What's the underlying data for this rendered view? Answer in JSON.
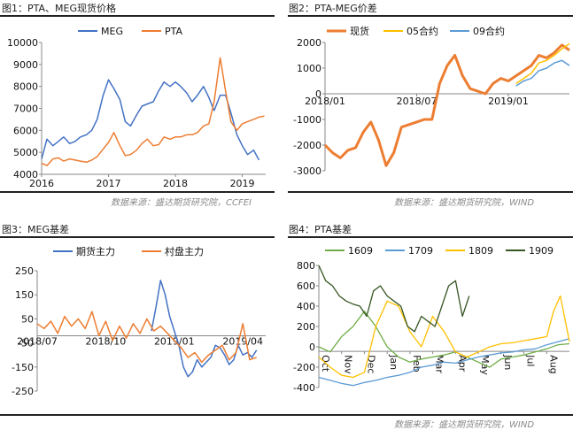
{
  "captions": {
    "c1_title": "图1：PTA、MEG现货价格",
    "c2_title": "图2：PTA-MEG价差",
    "c3_title": "图3：MEG基差",
    "c4_title": "图4：PTA基差",
    "source_left_top": "数据来源：盛达期货研究院，CCFEI",
    "source_right_top": "数据来源：盛达期货研究院，WIND",
    "source_bottom": "数据来源：盛达期货研究院，WIND"
  },
  "chart_data": [
    {
      "type": "line",
      "xlim": [
        2016.0,
        2019.35
      ],
      "ylim": [
        4000,
        10000
      ],
      "yticks": [
        4000,
        5000,
        6000,
        7000,
        8000,
        9000,
        10000
      ],
      "xticks": [
        {
          "v": 2016.0,
          "label": "2016"
        },
        {
          "v": 2017.0,
          "label": "2017"
        },
        {
          "v": 2018.0,
          "label": "2018"
        },
        {
          "v": 2019.0,
          "label": "2019"
        }
      ],
      "series": [
        {
          "name": "MEG",
          "color": "#4472c4",
          "x": [
            2016.0,
            2016.08,
            2016.17,
            2016.25,
            2016.33,
            2016.42,
            2016.5,
            2016.58,
            2016.67,
            2016.75,
            2016.83,
            2016.92,
            2017.0,
            2017.08,
            2017.17,
            2017.25,
            2017.33,
            2017.42,
            2017.5,
            2017.58,
            2017.67,
            2017.75,
            2017.83,
            2017.92,
            2018.0,
            2018.08,
            2018.17,
            2018.25,
            2018.33,
            2018.42,
            2018.5,
            2018.58,
            2018.67,
            2018.75,
            2018.83,
            2018.92,
            2019.0,
            2019.08,
            2019.17,
            2019.25
          ],
          "y": [
            4700,
            5600,
            5300,
            5500,
            5700,
            5400,
            5500,
            5700,
            5800,
            6000,
            6500,
            7600,
            8300,
            7900,
            7400,
            6400,
            6200,
            6700,
            7100,
            7200,
            7300,
            7800,
            8200,
            8000,
            8200,
            8000,
            7700,
            7300,
            7600,
            8000,
            7500,
            6900,
            7600,
            7600,
            6800,
            5800,
            5300,
            4900,
            5100,
            4650
          ]
        },
        {
          "name": "PTA",
          "color": "#ed7d31",
          "x": [
            2016.0,
            2016.08,
            2016.17,
            2016.25,
            2016.33,
            2016.42,
            2016.5,
            2016.58,
            2016.67,
            2016.75,
            2016.83,
            2016.92,
            2017.0,
            2017.08,
            2017.17,
            2017.25,
            2017.33,
            2017.42,
            2017.5,
            2017.58,
            2017.67,
            2017.75,
            2017.83,
            2017.92,
            2018.0,
            2018.08,
            2018.17,
            2018.25,
            2018.33,
            2018.42,
            2018.5,
            2018.58,
            2018.67,
            2018.75,
            2018.83,
            2018.92,
            2019.0,
            2019.08,
            2019.17,
            2019.25,
            2019.33
          ],
          "y": [
            4500,
            4400,
            4700,
            4750,
            4600,
            4700,
            4650,
            4600,
            4550,
            4650,
            4800,
            5150,
            5450,
            5900,
            5300,
            4850,
            4900,
            5100,
            5400,
            5600,
            5300,
            5350,
            5700,
            5600,
            5700,
            5700,
            5800,
            5800,
            5900,
            6200,
            6300,
            7300,
            9300,
            7800,
            6400,
            6000,
            6300,
            6400,
            6500,
            6600,
            6650
          ]
        }
      ],
      "legend": "top"
    },
    {
      "type": "line",
      "xlim": [
        0,
        16
      ],
      "ylim": [
        -3000,
        2000
      ],
      "yticks": [
        -3000,
        -2000,
        -1000,
        0,
        1000,
        2000
      ],
      "xticks": [
        {
          "v": 0,
          "label": "2018/01"
        },
        {
          "v": 6,
          "label": "2018/07"
        },
        {
          "v": 12,
          "label": "2019/01"
        }
      ],
      "series": [
        {
          "name": "现货",
          "color": "#ed7d31",
          "x": [
            0,
            0.5,
            1,
            1.5,
            2,
            2.5,
            3,
            3.5,
            4,
            4.5,
            5,
            5.5,
            6,
            6.5,
            7,
            7.5,
            8,
            8.5,
            9,
            9.5,
            10,
            10.5,
            11,
            11.5,
            12,
            12.5,
            13,
            13.5,
            14,
            14.5,
            15,
            15.5,
            16
          ],
          "y": [
            -2000,
            -2300,
            -2500,
            -2200,
            -2100,
            -1500,
            -1100,
            -1800,
            -2800,
            -2300,
            -1300,
            -1200,
            -1100,
            -1000,
            -1000,
            400,
            1100,
            1500,
            700,
            200,
            100,
            0,
            400,
            600,
            500,
            700,
            900,
            1100,
            1500,
            1400,
            1600,
            1900,
            1700
          ]
        },
        {
          "name": "05合约",
          "color": "#ffc000",
          "x": [
            12.5,
            13,
            13.5,
            14,
            14.5,
            15,
            15.5,
            16
          ],
          "y": [
            400,
            600,
            800,
            1200,
            1300,
            1500,
            1750,
            1950
          ]
        },
        {
          "name": "09合约",
          "color": "#5b9bd5",
          "x": [
            12.5,
            13,
            13.5,
            14,
            14.5,
            15,
            15.5,
            16
          ],
          "y": [
            300,
            500,
            600,
            900,
            1000,
            1200,
            1300,
            1100
          ]
        }
      ],
      "legend": "top"
    },
    {
      "type": "line",
      "xlim": [
        0,
        10
      ],
      "ylim": [
        -250,
        250
      ],
      "yticks": [
        -250,
        -150,
        -50,
        50,
        150,
        250
      ],
      "xticks": [
        {
          "v": 0,
          "label": "2018/07"
        },
        {
          "v": 3,
          "label": "2018/10"
        },
        {
          "v": 6,
          "label": "2019/01"
        },
        {
          "v": 9,
          "label": "2019/04"
        }
      ],
      "series": [
        {
          "name": "期货主力",
          "color": "#4472c4",
          "x": [
            5.0,
            5.2,
            5.4,
            5.6,
            5.8,
            6.0,
            6.2,
            6.4,
            6.6,
            6.8,
            7.0,
            7.2,
            7.4,
            7.6,
            7.8,
            8.0,
            8.2,
            8.4,
            8.6,
            8.8,
            9.0,
            9.2,
            9.4,
            9.6
          ],
          "y": [
            0,
            100,
            210,
            150,
            60,
            0,
            -60,
            -150,
            -190,
            -170,
            -120,
            -150,
            -130,
            -110,
            -60,
            -70,
            -100,
            -140,
            -120,
            -60,
            -100,
            -90,
            -110,
            -80
          ]
        },
        {
          "name": "村盘主力",
          "color": "#ed7d31",
          "x": [
            0,
            0.3,
            0.6,
            0.9,
            1.2,
            1.5,
            1.8,
            2.1,
            2.4,
            2.7,
            3.0,
            3.3,
            3.6,
            3.9,
            4.2,
            4.5,
            4.8,
            5.1,
            5.4,
            5.7,
            6.0,
            6.3,
            6.6,
            6.9,
            7.2,
            7.5,
            7.8,
            8.1,
            8.4,
            8.7,
            9.0,
            9.3,
            9.6
          ],
          "y": [
            30,
            10,
            40,
            -10,
            60,
            20,
            50,
            10,
            80,
            -20,
            40,
            -40,
            20,
            -30,
            30,
            -10,
            50,
            0,
            20,
            -10,
            -40,
            -70,
            -110,
            -90,
            -130,
            -100,
            -80,
            -60,
            -120,
            -90,
            30,
            -120,
            -110
          ]
        }
      ],
      "legend": "top"
    },
    {
      "type": "line",
      "xlim": [
        0,
        11
      ],
      "ylim": [
        -400,
        800
      ],
      "yticks": [
        -400,
        -200,
        0,
        200,
        400,
        600,
        800
      ],
      "xticks": [
        {
          "v": 0,
          "label": "Oct"
        },
        {
          "v": 1,
          "label": "Nov"
        },
        {
          "v": 2,
          "label": "Dec"
        },
        {
          "v": 3,
          "label": "Jan"
        },
        {
          "v": 4,
          "label": "Feb"
        },
        {
          "v": 5,
          "label": "Mar"
        },
        {
          "v": 6,
          "label": "Apr"
        },
        {
          "v": 7,
          "label": "May"
        },
        {
          "v": 8,
          "label": "Jun"
        },
        {
          "v": 9,
          "label": "Jul"
        },
        {
          "v": 10,
          "label": "Aug"
        }
      ],
      "series": [
        {
          "name": "1609",
          "color": "#70ad47",
          "x": [
            0,
            0.5,
            1,
            1.5,
            2,
            2.5,
            3,
            3.5,
            4,
            4.5,
            5,
            5.5,
            6,
            6.5,
            7,
            7.5,
            8,
            8.5,
            9,
            9.5,
            10,
            10.5,
            11
          ],
          "y": [
            0,
            -50,
            100,
            200,
            350,
            200,
            0,
            -100,
            -150,
            -120,
            -100,
            -80,
            -50,
            -100,
            -150,
            -200,
            -120,
            -100,
            -80,
            -50,
            -20,
            20,
            30
          ]
        },
        {
          "name": "1709",
          "color": "#5b9bd5",
          "x": [
            0,
            0.5,
            1,
            1.5,
            2,
            2.5,
            3,
            3.5,
            4,
            4.5,
            5,
            5.5,
            6,
            6.5,
            7,
            7.5,
            8,
            8.5,
            9,
            9.5,
            10,
            10.5,
            11
          ],
          "y": [
            -300,
            -330,
            -360,
            -380,
            -350,
            -330,
            -300,
            -280,
            -250,
            -200,
            -180,
            -150,
            -160,
            -130,
            -100,
            -80,
            -60,
            -50,
            -30,
            -20,
            20,
            50,
            80
          ]
        },
        {
          "name": "1809",
          "color": "#ffc000",
          "x": [
            0,
            0.5,
            1,
            1.5,
            2,
            2.5,
            3,
            3.5,
            4,
            4.5,
            5,
            5.5,
            6,
            6.5,
            7,
            7.5,
            8,
            8.5,
            9,
            9.5,
            10,
            10.3,
            10.6,
            11
          ],
          "y": [
            -100,
            -200,
            -280,
            -300,
            -250,
            200,
            450,
            400,
            150,
            0,
            300,
            150,
            -50,
            -100,
            -50,
            0,
            30,
            40,
            60,
            80,
            100,
            350,
            500,
            50
          ]
        },
        {
          "name": "1909",
          "color": "#375623",
          "x": [
            0,
            0.3,
            0.6,
            0.9,
            1.2,
            1.5,
            1.8,
            2.1,
            2.4,
            2.7,
            3.0,
            3.3,
            3.6,
            3.9,
            4.2,
            4.5,
            4.8,
            5.1,
            5.4,
            5.7,
            6.0,
            6.3,
            6.6
          ],
          "y": [
            800,
            650,
            600,
            500,
            450,
            420,
            400,
            300,
            550,
            600,
            500,
            450,
            400,
            200,
            150,
            300,
            250,
            200,
            400,
            600,
            650,
            300,
            500
          ]
        }
      ],
      "legend": "top"
    }
  ]
}
